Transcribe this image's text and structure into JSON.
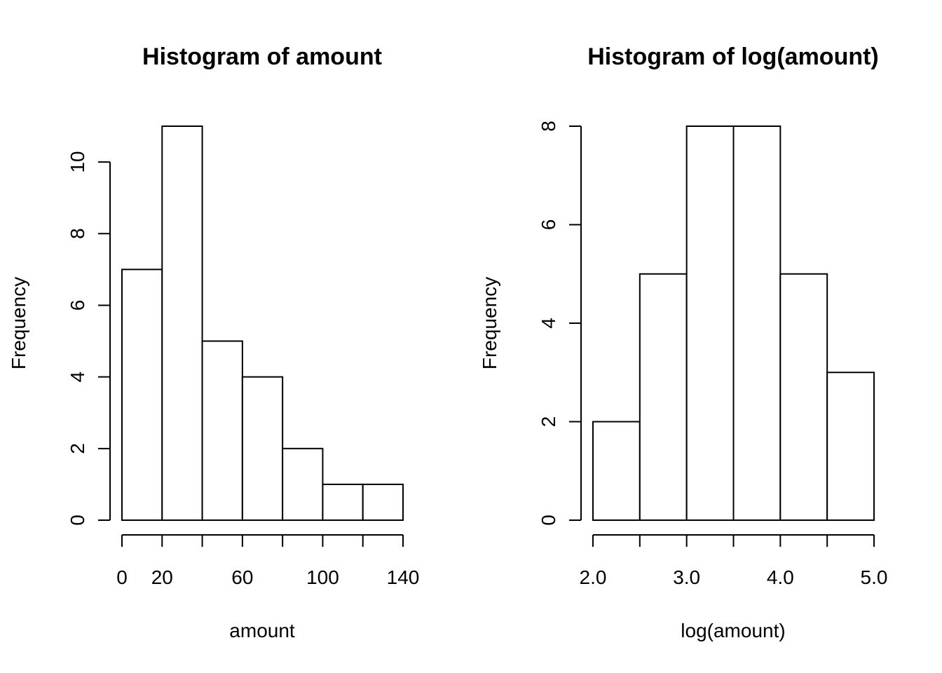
{
  "chart_data": [
    {
      "type": "bar",
      "title": "Histogram of amount",
      "xlabel": "amount",
      "ylabel": "Frequency",
      "bins": [
        [
          0,
          20
        ],
        [
          20,
          40
        ],
        [
          40,
          60
        ],
        [
          60,
          80
        ],
        [
          80,
          100
        ],
        [
          100,
          120
        ],
        [
          120,
          140
        ]
      ],
      "values": [
        7,
        11,
        5,
        4,
        2,
        1,
        1
      ],
      "xlim": [
        0,
        140
      ],
      "ylim": [
        0,
        11
      ],
      "x_ticks": [
        0,
        20,
        40,
        60,
        80,
        100,
        120,
        140
      ],
      "x_tick_labels": [
        {
          "value": 0,
          "label": "0"
        },
        {
          "value": 20,
          "label": "20"
        },
        {
          "value": 60,
          "label": "60"
        },
        {
          "value": 100,
          "label": "100"
        },
        {
          "value": 140,
          "label": "140"
        }
      ],
      "y_ticks": [
        {
          "value": 0,
          "label": "0"
        },
        {
          "value": 2,
          "label": "2"
        },
        {
          "value": 4,
          "label": "4"
        },
        {
          "value": 6,
          "label": "6"
        },
        {
          "value": 8,
          "label": "8"
        },
        {
          "value": 10,
          "label": "10"
        }
      ],
      "grid": false
    },
    {
      "type": "bar",
      "title": "Histogram of log(amount)",
      "xlabel": "log(amount)",
      "ylabel": "Frequency",
      "bins": [
        [
          2.0,
          2.5
        ],
        [
          2.5,
          3.0
        ],
        [
          3.0,
          3.5
        ],
        [
          3.5,
          4.0
        ],
        [
          4.0,
          4.5
        ],
        [
          4.5,
          5.0
        ]
      ],
      "values": [
        2,
        5,
        8,
        8,
        5,
        3
      ],
      "xlim": [
        2.0,
        5.0
      ],
      "ylim": [
        0,
        8
      ],
      "x_ticks": [
        2.0,
        2.5,
        3.0,
        3.5,
        4.0,
        4.5,
        5.0
      ],
      "x_tick_labels": [
        {
          "value": 2.0,
          "label": "2.0"
        },
        {
          "value": 3.0,
          "label": "3.0"
        },
        {
          "value": 4.0,
          "label": "4.0"
        },
        {
          "value": 5.0,
          "label": "5.0"
        }
      ],
      "y_ticks": [
        {
          "value": 0,
          "label": "0"
        },
        {
          "value": 2,
          "label": "2"
        },
        {
          "value": 4,
          "label": "4"
        },
        {
          "value": 6,
          "label": "6"
        },
        {
          "value": 8,
          "label": "8"
        }
      ],
      "grid": false
    }
  ]
}
